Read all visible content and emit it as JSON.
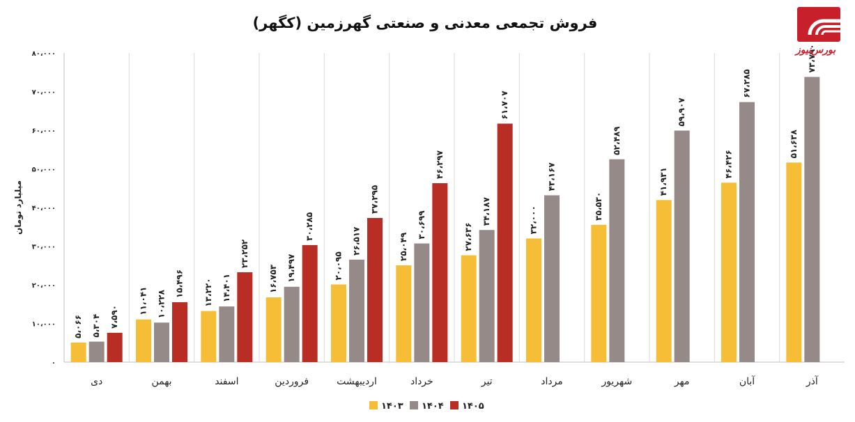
{
  "chart_data": {
    "type": "bar",
    "title": "فروش تجمعی معدنی و صنعتی گهرزمین (کگهر)",
    "ylabel": "میلیارد تومان",
    "xlabel": "",
    "ylim": [
      0,
      80000
    ],
    "yticks": [
      "۰",
      "۱۰،۰۰۰",
      "۲۰،۰۰۰",
      "۳۰،۰۰۰",
      "۴۰،۰۰۰",
      "۵۰،۰۰۰",
      "۶۰،۰۰۰",
      "۷۰،۰۰۰",
      "۸۰،۰۰۰"
    ],
    "ytick_values": [
      0,
      10000,
      20000,
      30000,
      40000,
      50000,
      60000,
      70000,
      80000
    ],
    "grid": false,
    "legend_position": "bottom-center",
    "categories": [
      "دی",
      "بهمن",
      "اسفند",
      "فروردین",
      "اردیبهشت",
      "خرداد",
      "تیر",
      "مرداد",
      "شهریور",
      "مهر",
      "آبان",
      "آذر"
    ],
    "series": [
      {
        "name": "۱۴۰۳",
        "color": "#F5BE36",
        "values": [
          5066,
          11041,
          13220,
          16753,
          20095,
          25049,
          27636,
          32000,
          35530,
          41931,
          46426,
          51638
        ],
        "labels": [
          "۵،۰۶۶",
          "۱۱،۰۴۱",
          "۱۳،۲۲۰",
          "۱۶،۷۵۳",
          "۲۰،۰۹۵",
          "۲۵،۰۴۹",
          "۲۷،۶۳۶",
          "۳۲،۰۰۰",
          "۳۵،۵۳۰",
          "۴۱،۹۳۱",
          "۴۶،۴۲۶",
          "۵۱،۶۳۸"
        ]
      },
      {
        "name": "۱۴۰۴",
        "color": "#958A87",
        "values": [
          5304,
          10228,
          14401,
          19497,
          26517,
          30699,
          34187,
          43167,
          52489,
          59907,
          67285,
          73790
        ],
        "labels": [
          "۵،۳۰۴",
          "۱۰،۲۲۸",
          "۱۴،۴۰۱",
          "۱۹،۴۹۷",
          "۲۶،۵۱۷",
          "۳۰،۶۹۹",
          "۳۴،۱۸۷",
          "۴۳،۱۶۷",
          "۵۲،۴۸۹",
          "۵۹،۹۰۷",
          "۶۷،۲۸۵",
          "۷۳،۷۹۰"
        ]
      },
      {
        "name": "۱۴۰۵",
        "color": "#B82E24",
        "values": [
          7590,
          15496,
          23252,
          30285,
          37295,
          46297,
          61707,
          null,
          null,
          null,
          null,
          null
        ],
        "labels": [
          "۷،۵۹۰",
          "۱۵،۴۹۶",
          "۲۳،۲۵۲",
          "۳۰،۲۸۵",
          "۳۷،۲۹۵",
          "۴۶،۲۹۷",
          "۶۱،۷۰۷",
          "",
          "",
          "",
          "",
          ""
        ]
      }
    ]
  },
  "logo": {
    "text": "بورس‌نیوز",
    "color": "#C8202B"
  }
}
